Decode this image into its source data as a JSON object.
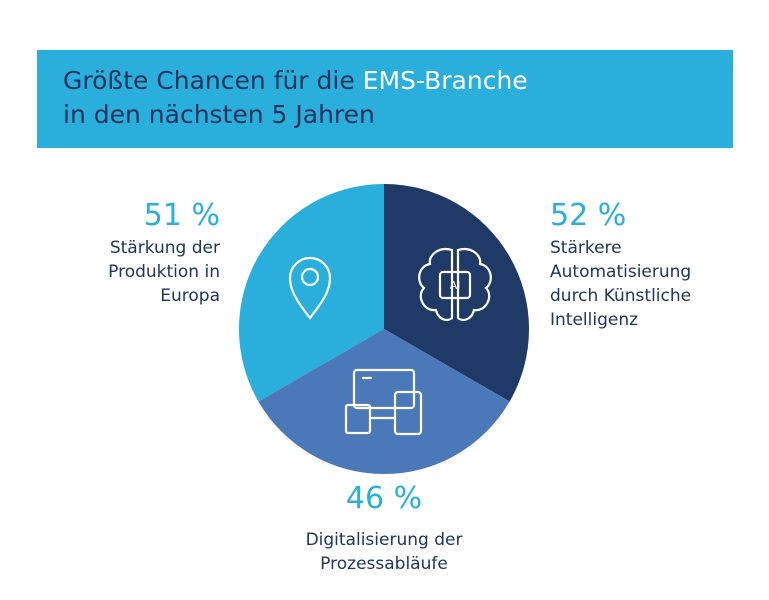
{
  "header": {
    "title_part1": "Größte Chancen für die",
    "title_highlight": "EMS-Branche",
    "title_line2": "in den nächsten 5 Jahren"
  },
  "items": [
    {
      "value": "51 %",
      "label_lines": [
        "Stärkung der",
        "Produktion in",
        "Europa"
      ]
    },
    {
      "value": "52 %",
      "label_lines": [
        "Stärkere",
        "Automatisierung",
        "durch Künstliche",
        "Intelligenz"
      ]
    },
    {
      "value": "46 %",
      "label_lines": [
        "Digitalisierung der",
        "Prozessabläufe"
      ]
    }
  ],
  "icon_text": "AI"
}
